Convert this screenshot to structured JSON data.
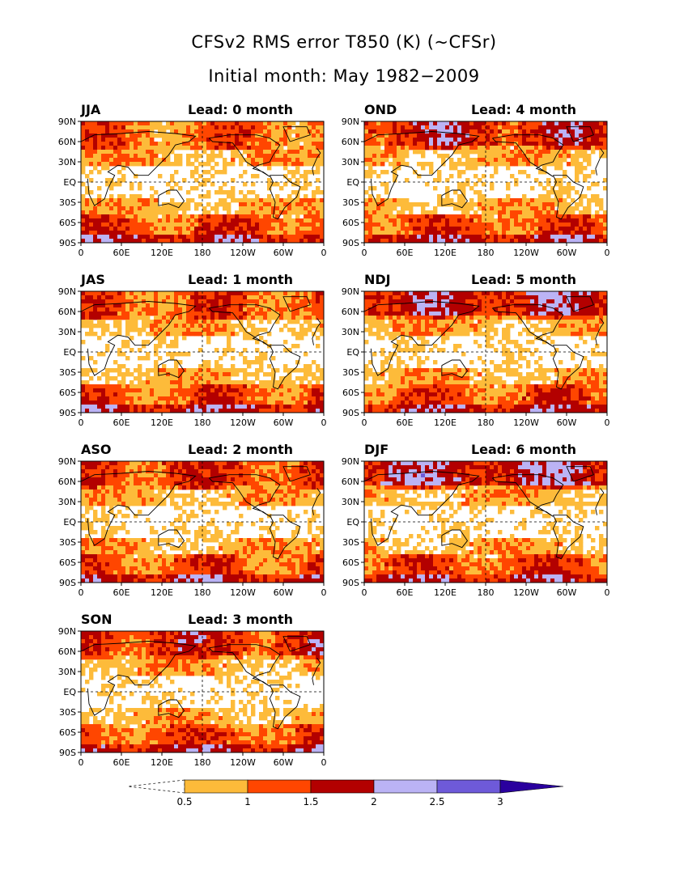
{
  "title_line1": "CFSv2 RMS error T850 (K) (~CFSr)",
  "title_line2": "Initial month: May 1982−2009",
  "lat_labels": [
    "90N",
    "60N",
    "30N",
    "EQ",
    "30S",
    "60S",
    "90S"
  ],
  "lon_labels": [
    "0",
    "60E",
    "120E",
    "180",
    "120W",
    "60W",
    "0"
  ],
  "lead_prefix": "Lead:",
  "panels": [
    {
      "season": "JJA",
      "lead": "Lead: 0 month",
      "lead_months": 0
    },
    {
      "season": "OND",
      "lead": "Lead: 4 month",
      "lead_months": 4
    },
    {
      "season": "JAS",
      "lead": "Lead: 1 month",
      "lead_months": 1
    },
    {
      "season": "NDJ",
      "lead": "Lead: 5 month",
      "lead_months": 5
    },
    {
      "season": "ASO",
      "lead": "Lead: 2 month",
      "lead_months": 2
    },
    {
      "season": "DJF",
      "lead": "Lead: 6 month",
      "lead_months": 6
    },
    {
      "season": "SON",
      "lead": "Lead: 3 month",
      "lead_months": 3
    }
  ],
  "colorbar": {
    "labels": [
      "0.5",
      "1",
      "1.5",
      "2",
      "2.5",
      "3"
    ],
    "colors": [
      "#ffffff",
      "#fdbb3a",
      "#ff4600",
      "#b30000",
      "#bbb3f5",
      "#6e5ad9",
      "#2a009e"
    ]
  }
}
